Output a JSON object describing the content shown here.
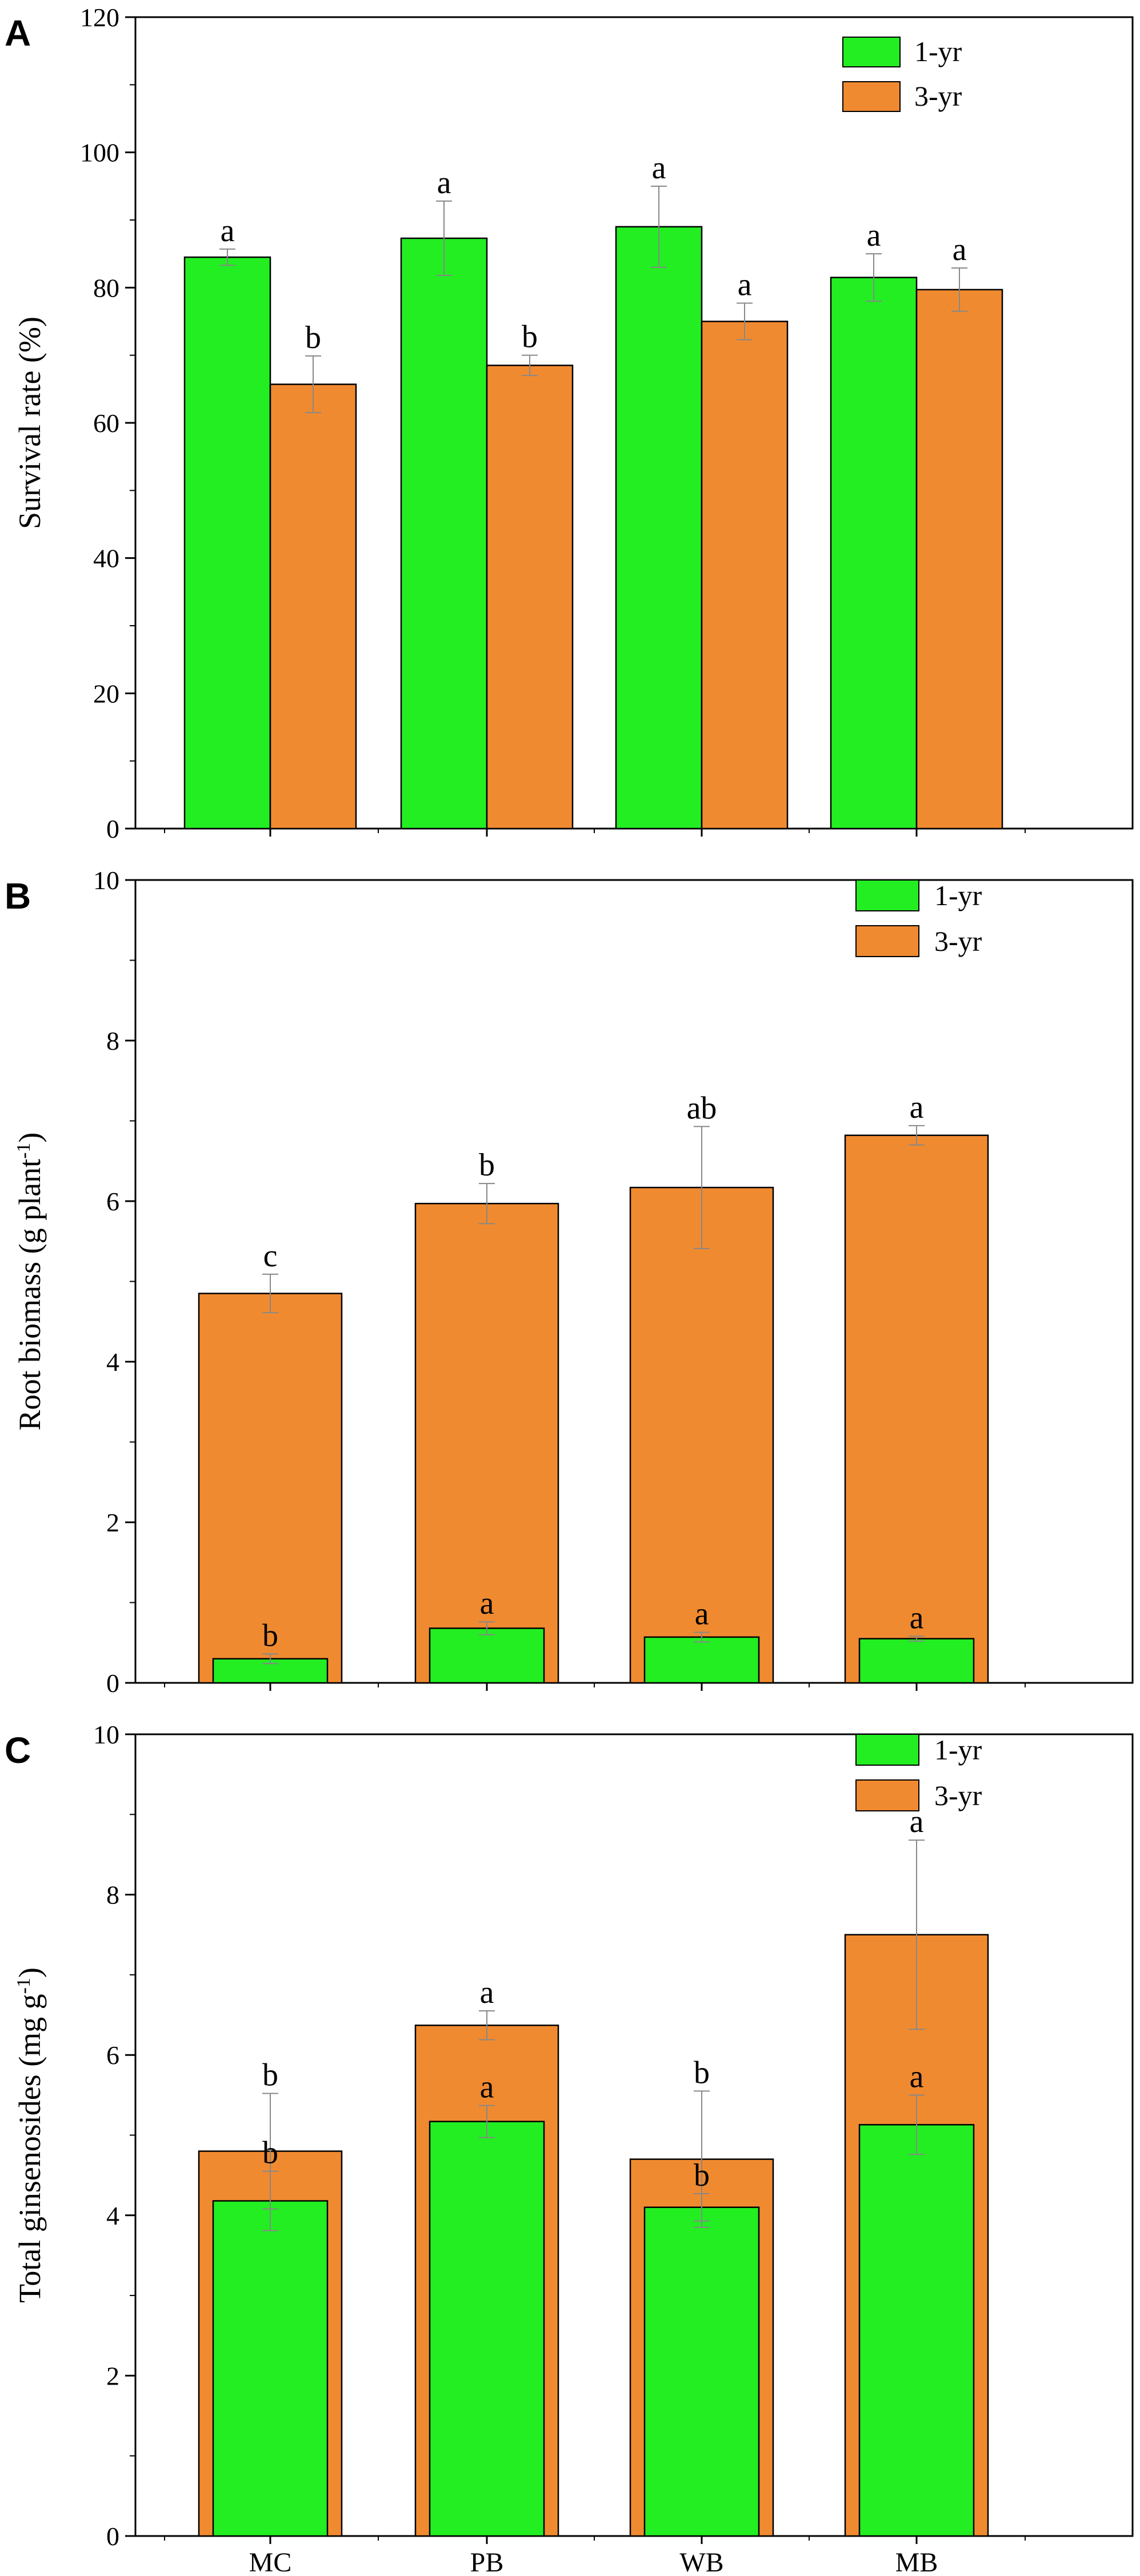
{
  "colors": {
    "one_yr": "#22ee22",
    "three_yr": "#f08a30",
    "edge": "#000000",
    "error": "#888888"
  },
  "chart_data": [
    {
      "panel": "A",
      "type": "bar",
      "layout": "grouped",
      "title": "",
      "xlabel": "",
      "ylabel": "Survival rate (%)",
      "ylim": [
        0,
        120
      ],
      "yticks": [
        "0",
        "20",
        "40",
        "60",
        "80",
        "100",
        "120"
      ],
      "categories": [
        "MC",
        "PB",
        "WB",
        "MB"
      ],
      "legend": {
        "position": "top-right"
      },
      "series": [
        {
          "name": "1-yr",
          "values": [
            84.5,
            87.3,
            89.0,
            81.5
          ],
          "errors": [
            1.2,
            5.5,
            6.0,
            3.5
          ],
          "letters": [
            "a",
            "a",
            "a",
            "a"
          ]
        },
        {
          "name": "3-yr",
          "values": [
            65.7,
            68.5,
            75.0,
            79.7
          ],
          "errors": [
            4.2,
            1.5,
            2.7,
            3.2
          ],
          "letters": [
            "b",
            "b",
            "a",
            "a"
          ]
        }
      ]
    },
    {
      "panel": "B",
      "type": "bar",
      "layout": "overlaid",
      "title": "",
      "xlabel": "",
      "ylabel": "Root biomass (g plant",
      "ylabel_sup": "-1",
      "ylabel_end": ")",
      "ylim": [
        0,
        10
      ],
      "yticks": [
        "0",
        "2",
        "4",
        "6",
        "8",
        "10"
      ],
      "categories": [
        "MC",
        "PB",
        "WB",
        "MB"
      ],
      "legend": {
        "position": "top-right"
      },
      "series": [
        {
          "name": "1-yr",
          "values": [
            0.3,
            0.68,
            0.57,
            0.55
          ],
          "errors": [
            0.06,
            0.08,
            0.06,
            0.03
          ],
          "letters": [
            "b",
            "a",
            "a",
            "a"
          ]
        },
        {
          "name": "3-yr",
          "values": [
            4.85,
            5.97,
            6.17,
            6.82
          ],
          "errors": [
            0.24,
            0.25,
            0.76,
            0.12
          ],
          "letters": [
            "c",
            "b",
            "ab",
            "a"
          ]
        }
      ]
    },
    {
      "panel": "C",
      "type": "bar",
      "layout": "overlaid",
      "title": "",
      "xlabel": "",
      "ylabel": "Total ginsenosides (mg g",
      "ylabel_sup": "-1",
      "ylabel_end": ")",
      "ylim": [
        0,
        10
      ],
      "yticks": [
        "0",
        "2",
        "4",
        "6",
        "8",
        "10"
      ],
      "categories": [
        "MC",
        "PB",
        "WB",
        "MB"
      ],
      "legend": {
        "position": "top-right"
      },
      "series": [
        {
          "name": "1-yr",
          "values": [
            4.18,
            5.17,
            4.1,
            5.13
          ],
          "errors": [
            0.37,
            0.2,
            0.17,
            0.37
          ],
          "letters": [
            "b",
            "a",
            "b",
            "a"
          ]
        },
        {
          "name": "3-yr",
          "values": [
            4.8,
            6.37,
            4.7,
            7.5
          ],
          "errors": [
            0.72,
            0.18,
            0.85,
            1.18
          ],
          "letters": [
            "b",
            "a",
            "b",
            "a"
          ]
        }
      ]
    }
  ]
}
